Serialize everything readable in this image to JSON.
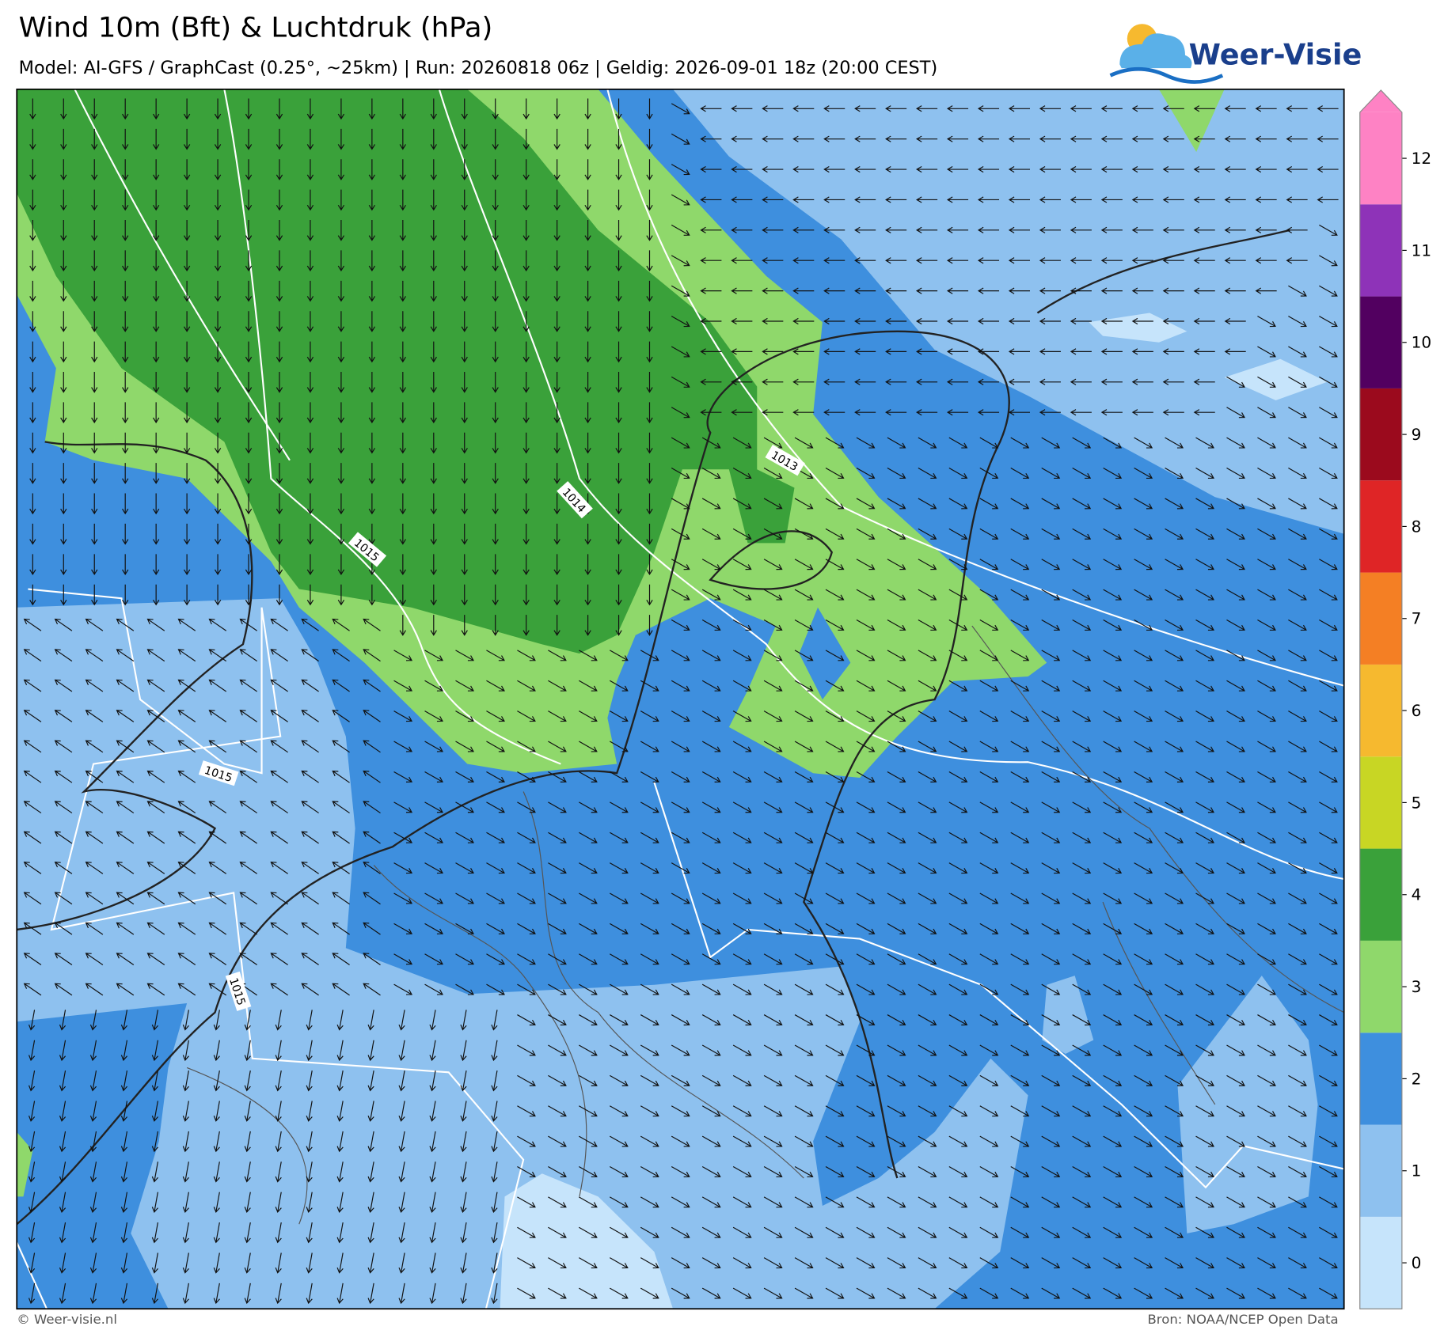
{
  "header": {
    "title": "Wind 10m (Bft) & Luchtdruk (hPa)",
    "subtitle": "Model: AI-GFS / GraphCast (0.25°, ~25km)  |  Run: 20260818 06z  |  Geldig: 2026-09-01 18z (20:00 CEST)",
    "logo": "Weer-Visie"
  },
  "colorbar": {
    "levels": [
      {
        "label": "0",
        "color": "#c6e4fb"
      },
      {
        "label": "1",
        "color": "#8ec1ef"
      },
      {
        "label": "2",
        "color": "#3e8fde"
      },
      {
        "label": "3",
        "color": "#8fd86b"
      },
      {
        "label": "4",
        "color": "#3aa13a"
      },
      {
        "label": "5",
        "color": "#c8d624"
      },
      {
        "label": "6",
        "color": "#f6b92f"
      },
      {
        "label": "7",
        "color": "#f47f24"
      },
      {
        "label": "8",
        "color": "#df2526"
      },
      {
        "label": "9",
        "color": "#9b0a1d"
      },
      {
        "label": "10",
        "color": "#520060"
      },
      {
        "label": "11",
        "color": "#8e33b8"
      },
      {
        "label": "12",
        "color": "#fe82c4"
      }
    ]
  },
  "isobars": [
    {
      "label": "1013"
    },
    {
      "label": "1014"
    },
    {
      "label": "1015"
    },
    {
      "label": "1015"
    },
    {
      "label": "1015"
    }
  ],
  "footer": {
    "credit": "© Weer-visie.nl",
    "source": "Bron: NOAA/NCEP Open Data"
  }
}
